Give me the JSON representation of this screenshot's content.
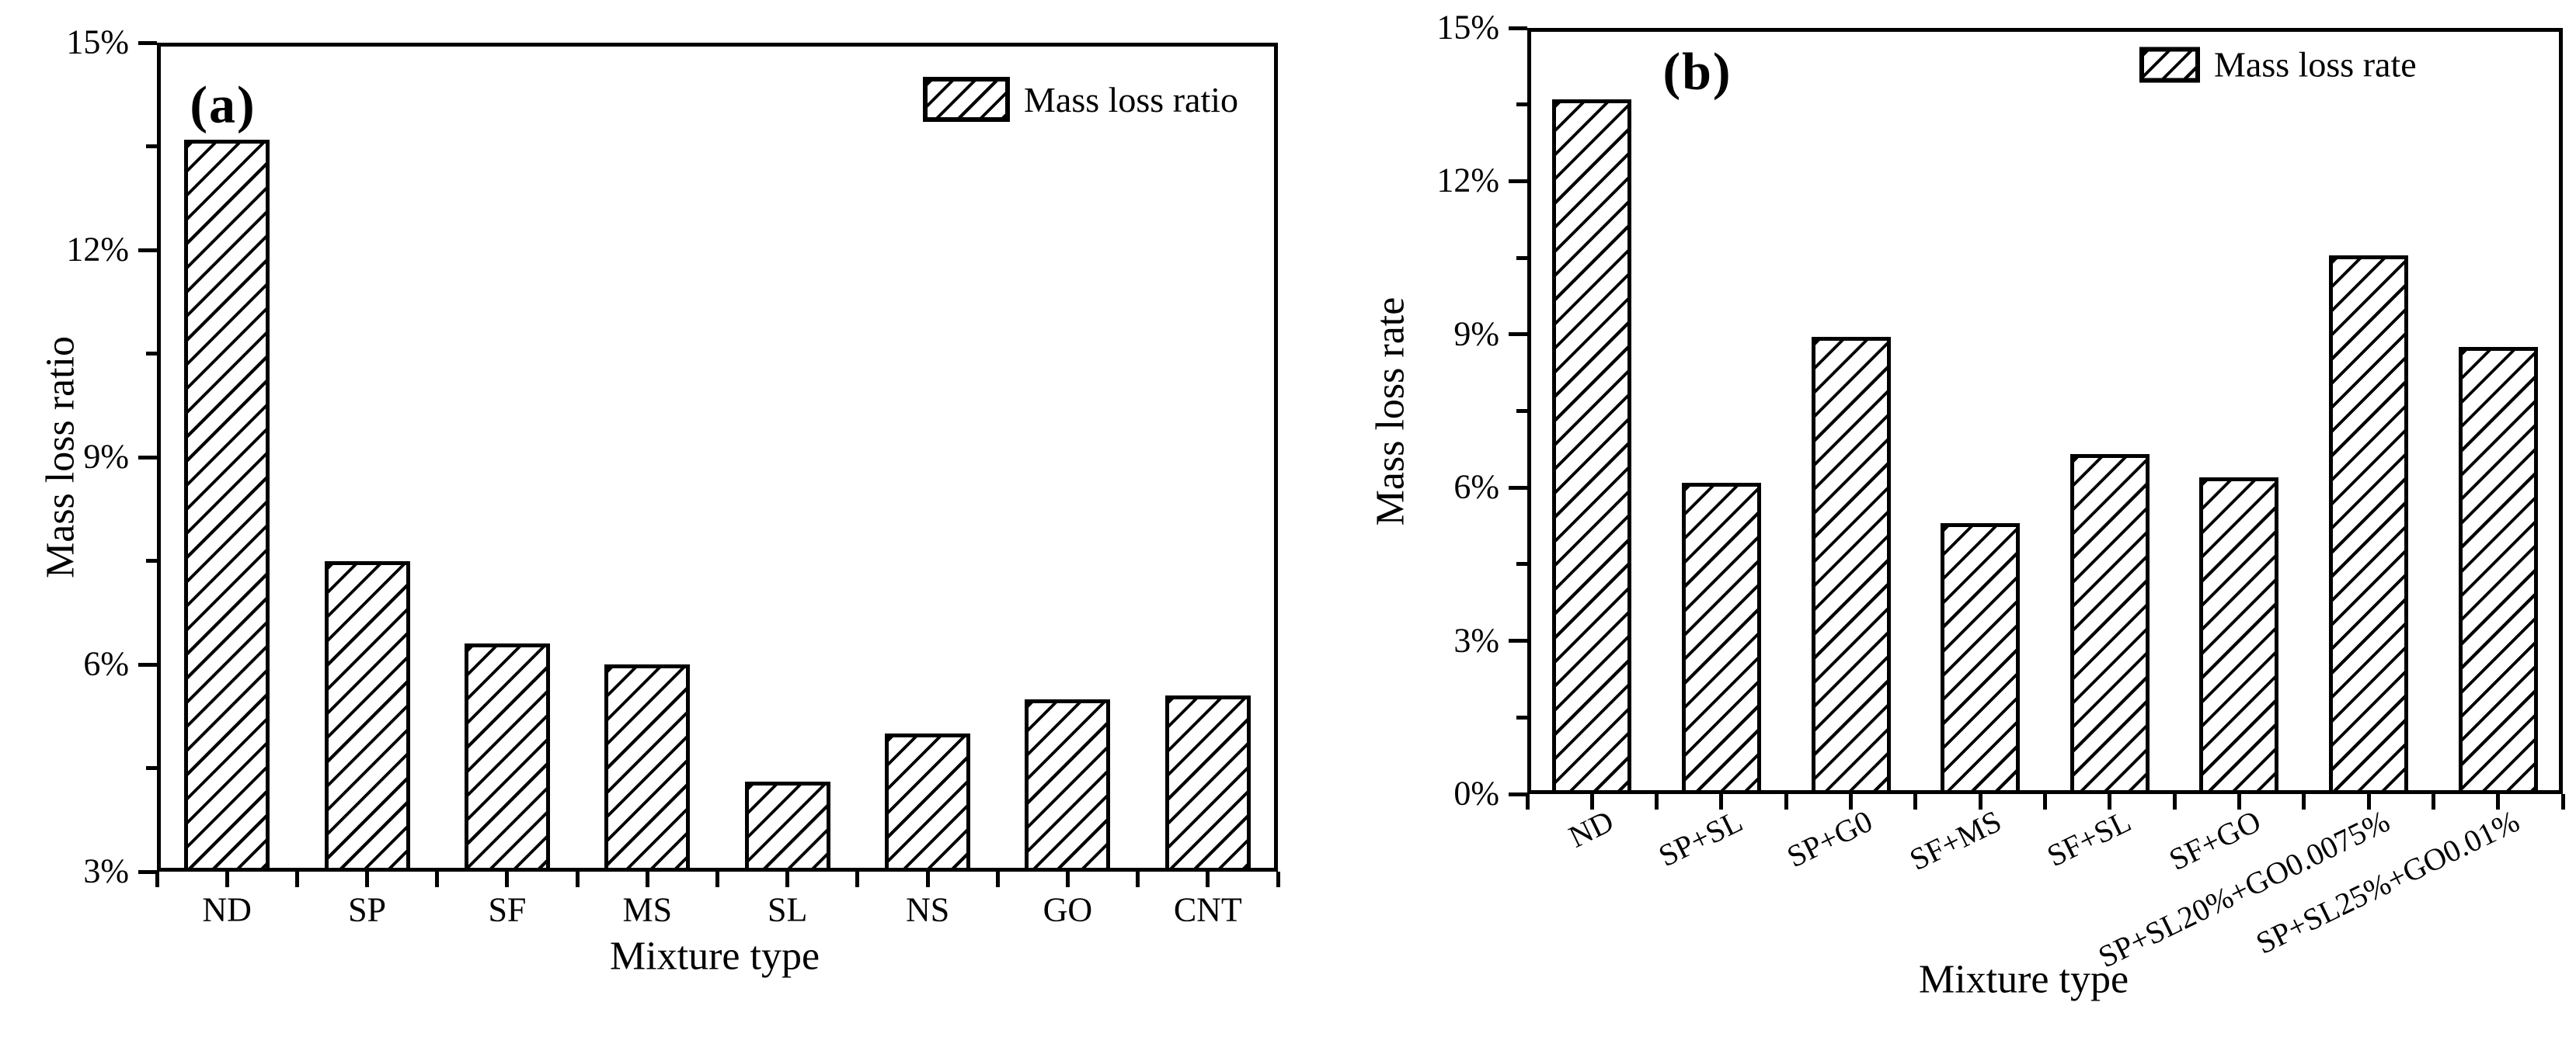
{
  "chart_data": [
    {
      "type": "bar",
      "panel_label": "(a)",
      "legend": "Mass loss ratio",
      "xlabel": "Mixture type",
      "ylabel": "Mass loss ratio",
      "categories": [
        "ND",
        "SP",
        "SF",
        "MS",
        "SL",
        "NS",
        "GO",
        "CNT"
      ],
      "values": [
        13.6,
        7.5,
        6.3,
        6.0,
        4.3,
        5.0,
        5.5,
        5.55
      ],
      "ylim": [
        3,
        15
      ],
      "ytick_values": [
        3,
        6,
        9,
        12,
        15
      ],
      "ytick_labels": [
        "3%",
        "6%",
        "9%",
        "12%",
        "15%"
      ],
      "minor_tick_step": 1.5,
      "bar_style": "diagonal-hatch",
      "bar_color": "#000000",
      "background": "#ffffff",
      "grid": false,
      "legend_position": "top-right"
    },
    {
      "type": "bar",
      "panel_label": "(b)",
      "legend": "Mass loss rate",
      "xlabel": "Mixture type",
      "ylabel": "Mass loss rate",
      "categories": [
        "ND",
        "SP+SL",
        "SP+G0",
        "SF+MS",
        "SF+SL",
        "SF+GO",
        "SP+SL20%+GO0.0075%",
        "SP+SL25%+GO0.01%"
      ],
      "values": [
        13.6,
        6.1,
        8.95,
        5.3,
        6.65,
        6.2,
        10.55,
        8.75
      ],
      "ylim": [
        0,
        15
      ],
      "ytick_values": [
        0,
        3,
        6,
        9,
        12,
        15
      ],
      "ytick_labels": [
        "0%",
        "3%",
        "6%",
        "9%",
        "12%",
        "15%"
      ],
      "minor_tick_step": 1.5,
      "xtick_label_rotation": -26,
      "bar_style": "diagonal-hatch",
      "bar_color": "#000000",
      "background": "#ffffff",
      "grid": false,
      "legend_position": "top-right"
    }
  ]
}
